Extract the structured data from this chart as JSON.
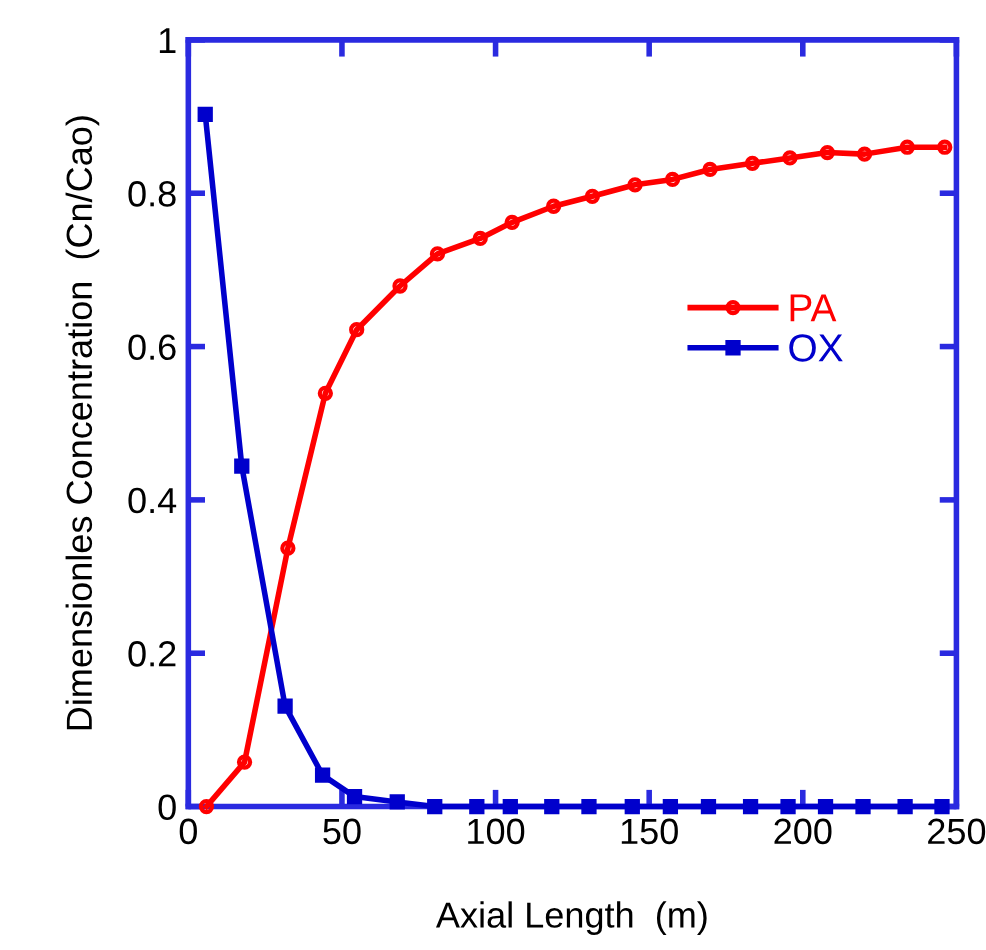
{
  "chart_data": {
    "type": "line",
    "xlabel": "Axial Length  (m)",
    "ylabel": "Dimensionles Concentration  (Cn/Cao)",
    "xlim": [
      0,
      250
    ],
    "xticks": [
      0,
      50,
      100,
      150,
      200,
      250
    ],
    "ylim": [
      0,
      1
    ],
    "yticks": [
      0,
      0.2,
      0.4,
      0.6,
      0.8,
      1
    ],
    "grid": false,
    "legend": "right",
    "series": [
      {
        "name": "PA",
        "color": "#ff0000",
        "marker": "circle",
        "x": [
          5.9,
          18.3,
          32.4,
          44.6,
          54.8,
          68.9,
          81.1,
          95,
          105.4,
          118.9,
          131.5,
          145.4,
          157.6,
          169.8,
          183.6,
          195.8,
          208,
          220.1,
          234,
          246.2
        ],
        "values": [
          0,
          0.058,
          0.337,
          0.539,
          0.622,
          0.679,
          0.721,
          0.741,
          0.762,
          0.783,
          0.796,
          0.811,
          0.818,
          0.831,
          0.839,
          0.846,
          0.853,
          0.851,
          0.86,
          0.86
        ]
      },
      {
        "name": "OX",
        "color": "#0000cc",
        "marker": "square",
        "x": [
          5.5,
          17.4,
          31.5,
          43.7,
          54.1,
          68,
          80.2,
          93.9,
          104.8,
          118.3,
          130.4,
          144.5,
          156.9,
          169.3,
          183,
          195.2,
          207.4,
          219.6,
          233.3,
          245.3
        ],
        "values": [
          0.903,
          0.444,
          0.131,
          0.041,
          0.013,
          0.006,
          0,
          0,
          0,
          0,
          0,
          0,
          0,
          0,
          0,
          0,
          0,
          0,
          0,
          0
        ]
      }
    ]
  }
}
